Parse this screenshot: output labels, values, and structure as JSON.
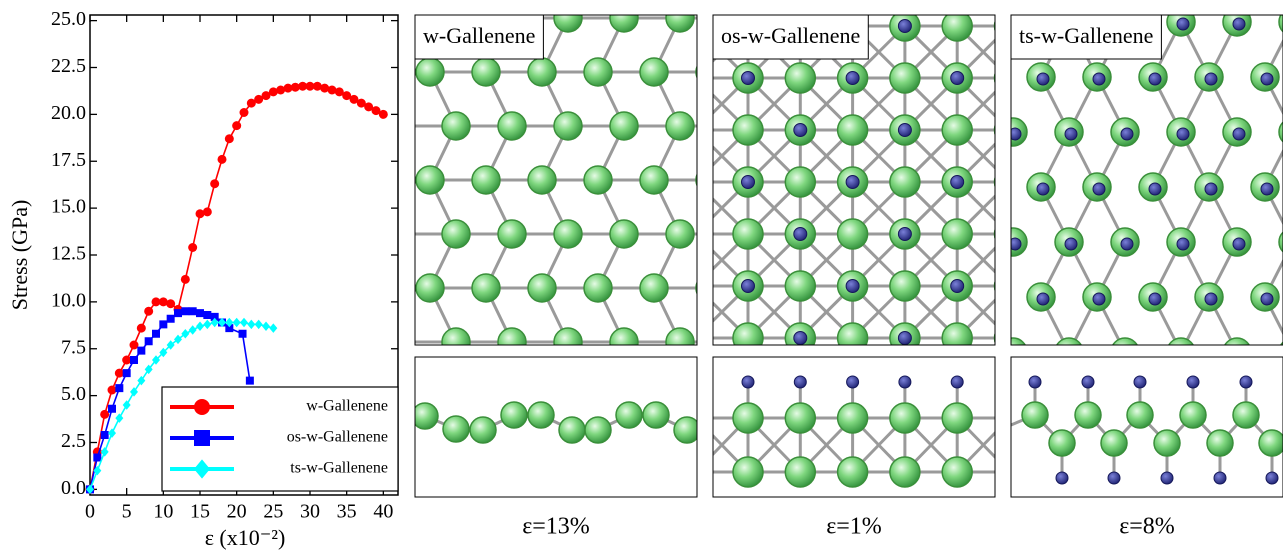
{
  "chart_data": {
    "type": "line",
    "xlabel": "ε (x10⁻²)",
    "ylabel": "Stress (GPa)",
    "xlim": [
      0,
      42
    ],
    "ylim": [
      -0.3,
      25.3
    ],
    "xticks": [
      0,
      5,
      10,
      15,
      20,
      25,
      30,
      35,
      40
    ],
    "yticks": [
      {
        "value": 0,
        "label": "0.0"
      },
      2.5,
      {
        "value": 5,
        "label": "5.0"
      },
      7.5,
      {
        "value": 10,
        "label": "10.0"
      },
      12.5,
      {
        "value": 15,
        "label": "15.0"
      },
      17.5,
      {
        "value": 20,
        "label": "20.0"
      },
      22.5,
      {
        "value": 25,
        "label": "25.0"
      }
    ],
    "legend": "lower right",
    "series": [
      {
        "name": "w-Gallenene",
        "color": "#ff0000",
        "marker": "circle",
        "x": [
          0,
          1,
          2,
          3,
          4,
          5,
          6,
          7,
          8,
          9,
          10,
          11,
          12,
          13,
          14,
          15,
          16,
          17,
          18,
          19,
          20,
          21,
          22,
          23,
          24,
          25,
          26,
          27,
          28,
          29,
          30,
          31,
          32,
          33,
          34,
          35,
          36,
          37,
          38,
          39,
          40
        ],
        "values": [
          0,
          2.0,
          4.0,
          5.3,
          6.2,
          6.9,
          7.7,
          8.6,
          9.5,
          10.0,
          10.0,
          9.9,
          9.6,
          11.2,
          12.9,
          14.7,
          14.8,
          16.3,
          17.6,
          18.7,
          19.4,
          20.1,
          20.6,
          20.8,
          21.0,
          21.2,
          21.3,
          21.4,
          21.45,
          21.5,
          21.5,
          21.5,
          21.4,
          21.3,
          21.2,
          21.0,
          20.8,
          20.6,
          20.4,
          20.2,
          20.0
        ]
      },
      {
        "name": "os-w-Gallenene",
        "color": "#0000ff",
        "marker": "square",
        "x": [
          0,
          1,
          2,
          3,
          4,
          5,
          6,
          7,
          8,
          9,
          10,
          11,
          12,
          13,
          14,
          15,
          16,
          17,
          18,
          19,
          20.8,
          21.8
        ],
        "values": [
          0,
          1.7,
          2.9,
          4.3,
          5.4,
          6.2,
          6.9,
          7.4,
          7.9,
          8.3,
          8.8,
          9.1,
          9.4,
          9.5,
          9.5,
          9.4,
          9.3,
          9.2,
          8.9,
          8.6,
          8.3,
          5.8
        ]
      },
      {
        "name": "ts-w-Gallenene",
        "color": "#00ffff",
        "marker": "diamond",
        "x": [
          0,
          1,
          2,
          3,
          4,
          5,
          6,
          7,
          8,
          9,
          10,
          11,
          12,
          13,
          14,
          15,
          16,
          17,
          18,
          19,
          20,
          21,
          22,
          23,
          24,
          25
        ],
        "values": [
          0,
          1.0,
          2.0,
          3.0,
          3.8,
          4.5,
          5.2,
          5.8,
          6.4,
          6.9,
          7.3,
          7.7,
          8.0,
          8.3,
          8.5,
          8.7,
          8.8,
          8.9,
          8.9,
          8.9,
          8.9,
          8.9,
          8.8,
          8.8,
          8.7,
          8.6
        ]
      }
    ]
  },
  "panels": [
    {
      "label": "w-Gallenene",
      "caption": "ε=13%"
    },
    {
      "label": "os-w-Gallenene",
      "caption": "ε=1%"
    },
    {
      "label": "ts-w-Gallenene",
      "caption": "ε=8%"
    }
  ]
}
